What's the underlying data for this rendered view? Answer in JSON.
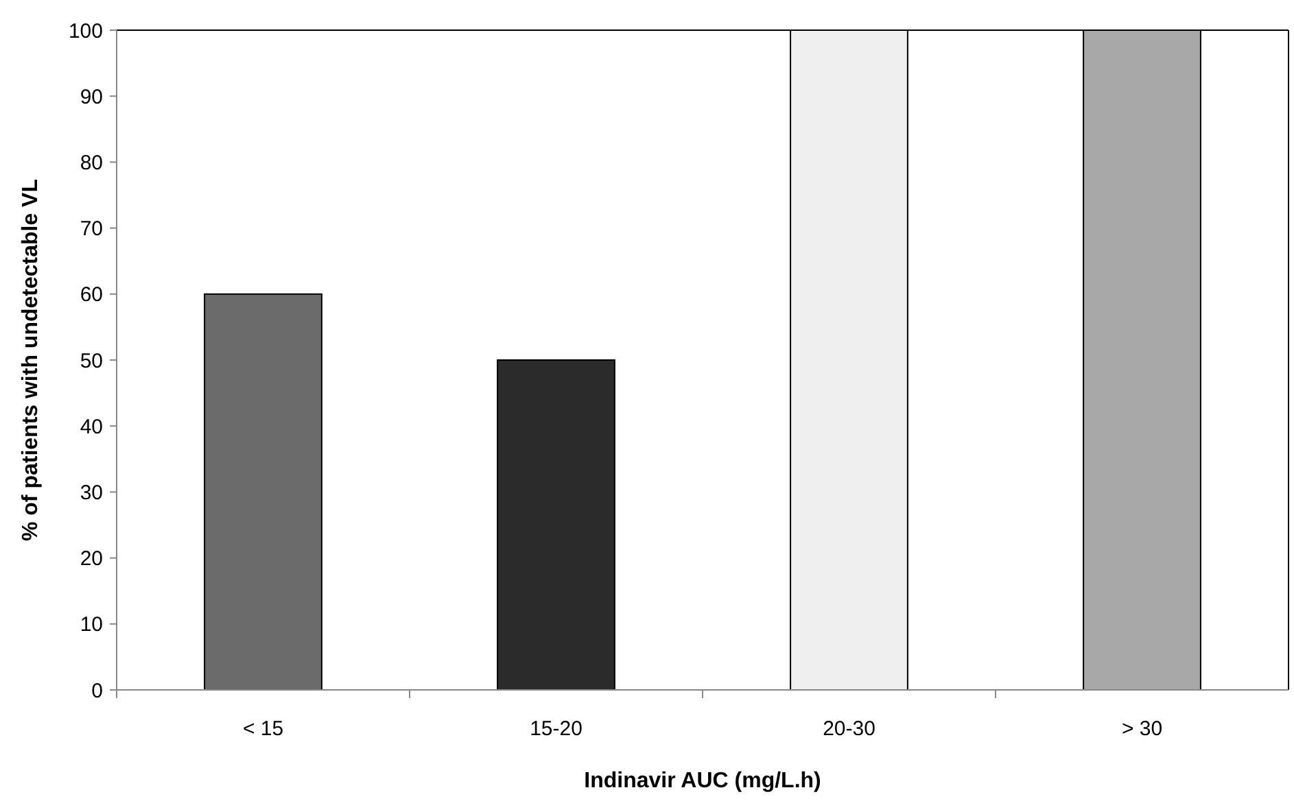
{
  "chart_data": {
    "type": "bar",
    "xlabel": "Indinavir AUC (mg/L.h)",
    "ylabel": "% of patients with undetectable VL",
    "categories": [
      "< 15",
      "15-20",
      "20-30",
      "> 30"
    ],
    "values": [
      60,
      50,
      100,
      100
    ],
    "colors": [
      "#6b6b6b",
      "#2b2b2b",
      "#efefef",
      "#a8a8a8"
    ],
    "ylim": [
      0,
      100
    ],
    "yticks": [
      0,
      10,
      20,
      30,
      40,
      50,
      60,
      70,
      80,
      90,
      100
    ],
    "grid": false
  }
}
